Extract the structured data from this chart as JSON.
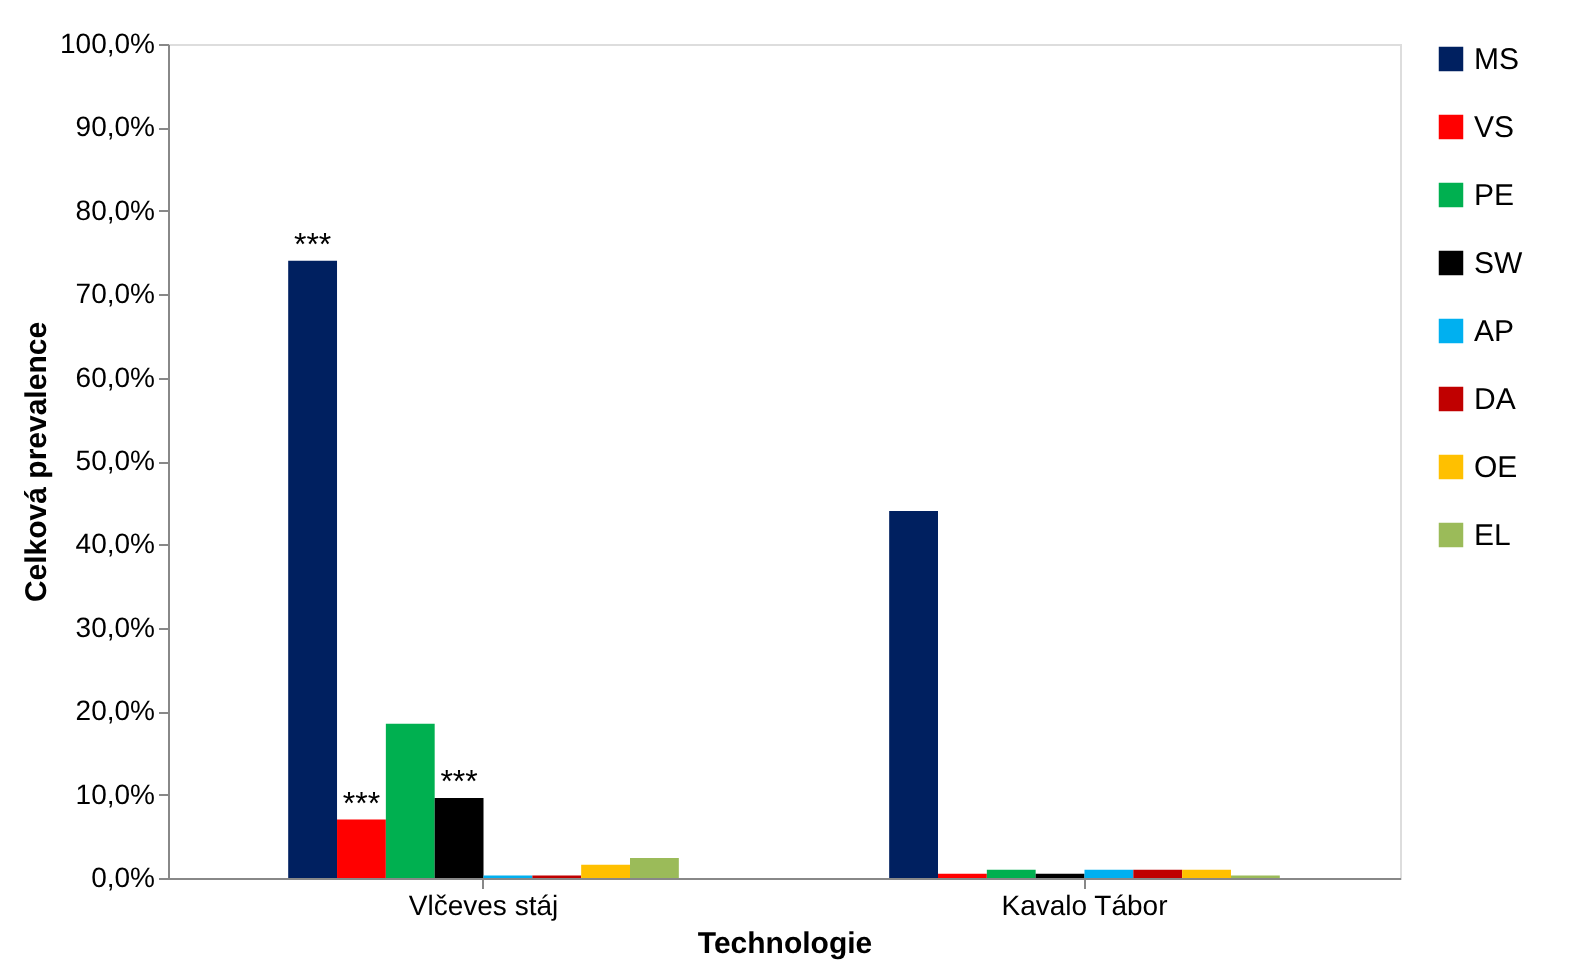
{
  "chart_data": {
    "type": "bar",
    "xlabel": "Technologie",
    "ylabel": "Celková prevalence",
    "categories": [
      "Vlčeves stáj",
      "Kavalo Tábor"
    ],
    "series": [
      {
        "name": "MS",
        "color": "#002060",
        "values": [
          74,
          44
        ],
        "value_labels": [
          "***",
          null
        ]
      },
      {
        "name": "VS",
        "color": "#ff0000",
        "values": [
          7,
          0.5
        ],
        "value_labels": [
          "***",
          null
        ]
      },
      {
        "name": "PE",
        "color": "#00b050",
        "values": [
          18.5,
          1
        ]
      },
      {
        "name": "SW",
        "color": "#000000",
        "values": [
          9.6,
          0.5
        ],
        "value_labels": [
          "***",
          null
        ]
      },
      {
        "name": "AP",
        "color": "#00b0f0",
        "values": [
          0.3,
          1
        ]
      },
      {
        "name": "DA",
        "color": "#c00000",
        "values": [
          0.3,
          1
        ]
      },
      {
        "name": "OE",
        "color": "#ffc000",
        "values": [
          1.6,
          1
        ]
      },
      {
        "name": "EL",
        "color": "#9bbb59",
        "values": [
          2.4,
          0.3
        ]
      }
    ],
    "ylim": [
      0,
      100
    ],
    "yticks": [
      {
        "value": 0,
        "label": "0,0%"
      },
      {
        "value": 10,
        "label": "10,0%"
      },
      {
        "value": 20,
        "label": "20,0%"
      },
      {
        "value": 30,
        "label": "30,0%"
      },
      {
        "value": 40,
        "label": "40,0%"
      },
      {
        "value": 50,
        "label": "50,0%"
      },
      {
        "value": 60,
        "label": "60,0%"
      },
      {
        "value": 70,
        "label": "70,0%"
      },
      {
        "value": 80,
        "label": "80,0%"
      },
      {
        "value": 90,
        "label": "90,0%"
      },
      {
        "value": 100,
        "label": "100,0%"
      }
    ],
    "legend": "right",
    "grid": false
  }
}
